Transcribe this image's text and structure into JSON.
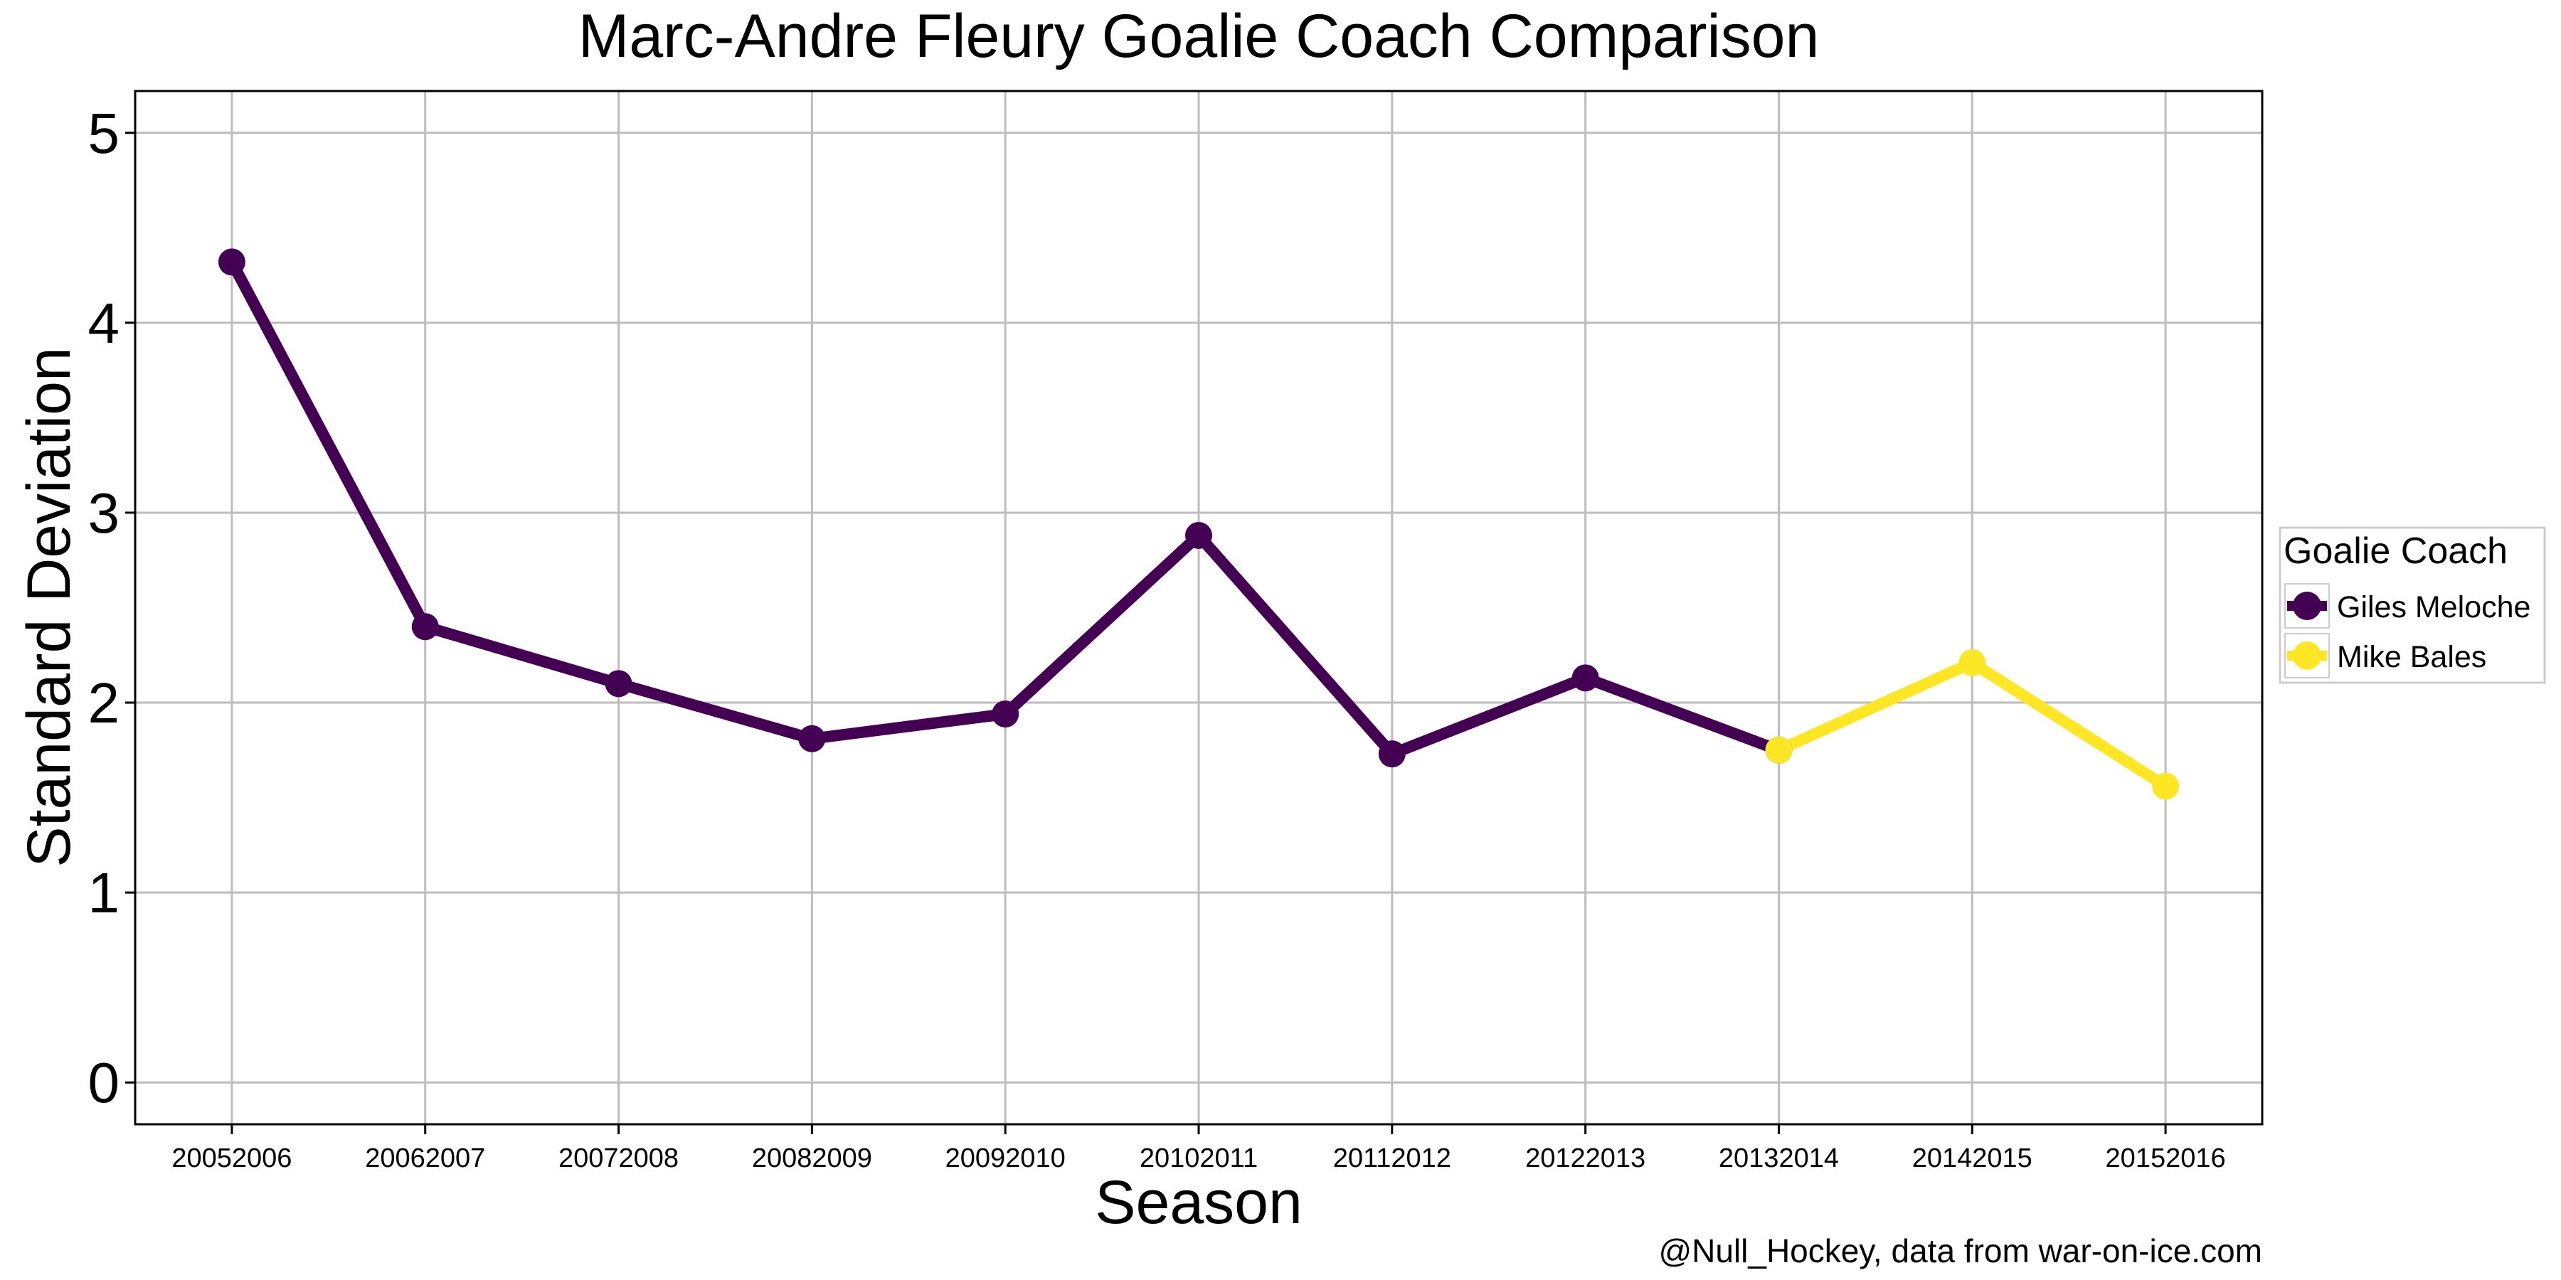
{
  "chart_data": {
    "type": "line",
    "title": "Marc-Andre Fleury Goalie Coach Comparison",
    "xlabel": "Season",
    "ylabel": "Standard Deviation",
    "caption": "@Null_Hockey, data from war-on-ice.com",
    "categories": [
      "20052006",
      "20062007",
      "20072008",
      "20082009",
      "20092010",
      "20102011",
      "20112012",
      "20122013",
      "20132014",
      "20142015",
      "20152016"
    ],
    "ylim": [
      -0.22,
      5.22
    ],
    "yticks": [
      "0",
      "1",
      "2",
      "3",
      "4",
      "5"
    ],
    "grid": true,
    "legend": {
      "title": "Goalie Coach",
      "placement": "right"
    },
    "series": [
      {
        "name": "Giles Meloche",
        "color": "#440154",
        "x": [
          "20052006",
          "20062007",
          "20072008",
          "20082009",
          "20092010",
          "20102011",
          "20112012",
          "20122013",
          "20132014"
        ],
        "values": [
          4.32,
          2.4,
          2.1,
          1.81,
          1.94,
          2.88,
          1.73,
          2.13,
          1.75
        ]
      },
      {
        "name": "Mike Bales",
        "color": "#FDE725",
        "x": [
          "20132014",
          "20142015",
          "20152016"
        ],
        "values": [
          1.75,
          2.21,
          1.56
        ]
      }
    ]
  }
}
